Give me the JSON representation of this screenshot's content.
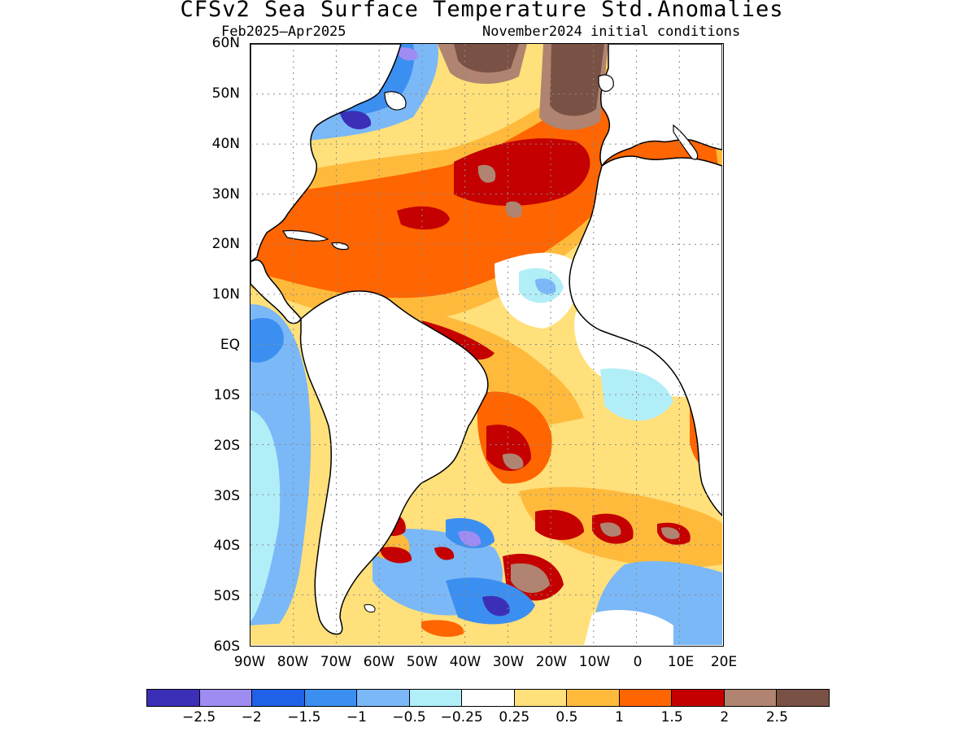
{
  "title": "CFSv2 Sea Surface Temperature Std.Anomalies",
  "subtitle_left": "Feb2025–Apr2025",
  "subtitle_right": "November2024 initial conditions",
  "map": {
    "lon_range": [
      -90,
      20
    ],
    "lat_range": [
      -60,
      60
    ],
    "lat_ticks": [
      "60N",
      "50N",
      "40N",
      "30N",
      "20N",
      "10N",
      "EQ",
      "10S",
      "20S",
      "30S",
      "40S",
      "50S",
      "60S"
    ],
    "lon_ticks": [
      "90W",
      "80W",
      "70W",
      "60W",
      "50W",
      "40W",
      "30W",
      "20W",
      "10W",
      "0",
      "10E",
      "20E"
    ],
    "grid_style": "dotted",
    "land_color": "#ffffff",
    "coastline_color": "#000000"
  },
  "colorbar": {
    "colors": [
      "#3b2fb8",
      "#9f8cf2",
      "#1f62e8",
      "#3b8ff0",
      "#7bb8f7",
      "#b2eef8",
      "#ffffff",
      "#ffe07a",
      "#ffba3c",
      "#ff6500",
      "#c40000",
      "#b08470",
      "#7a5145"
    ],
    "labels": [
      "−2.5",
      "−2",
      "−1.5",
      "−1",
      "−0.5",
      "−0.25",
      "0.25",
      "0.5",
      "1",
      "1.5",
      "2",
      "2.5"
    ]
  }
}
